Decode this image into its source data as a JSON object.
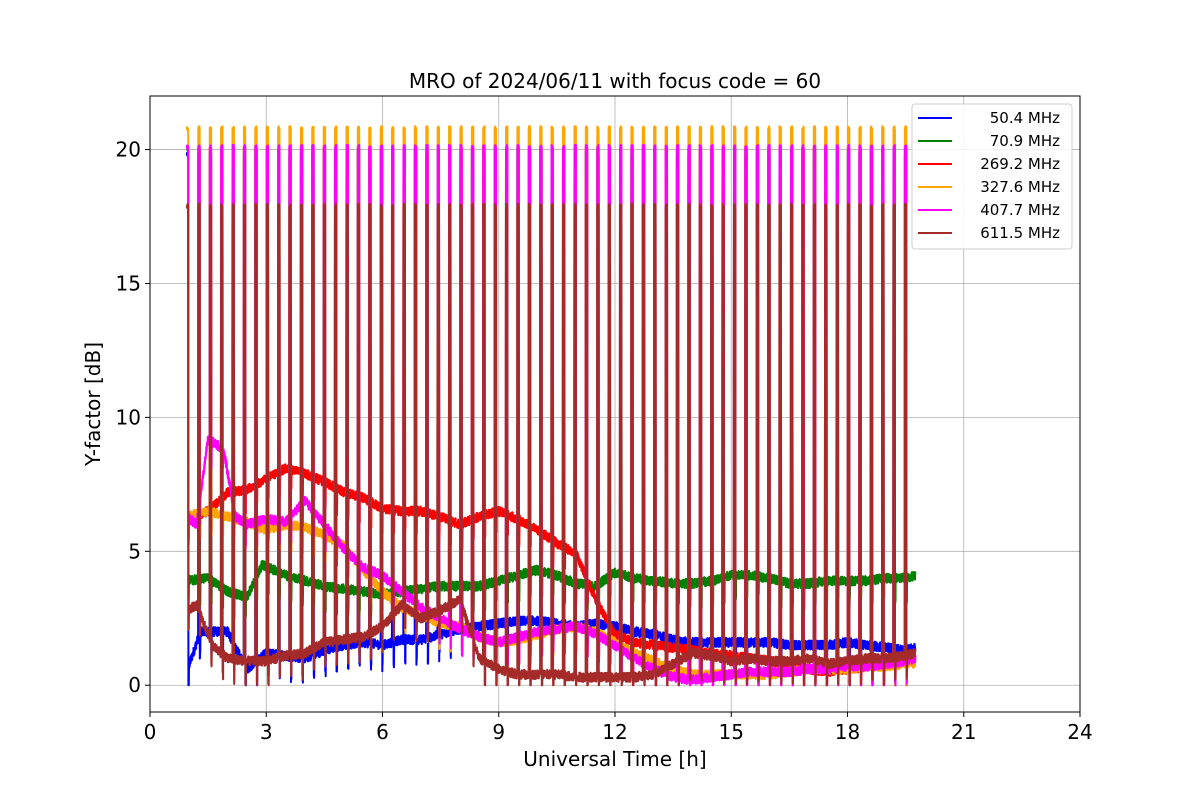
{
  "chart_data": {
    "type": "line",
    "title": "MRO of 2024/06/11 with focus code = 60",
    "xlabel": "Universal Time [h]",
    "ylabel": "Y-factor [dB]",
    "xlim": [
      0,
      24
    ],
    "ylim": [
      -1,
      22
    ],
    "xticks": [
      0,
      3,
      6,
      9,
      12,
      15,
      18,
      21,
      24
    ],
    "yticks": [
      0,
      5,
      10,
      15,
      20
    ],
    "grid": true,
    "legend_position": "top-right",
    "data_range_hours": [
      0.95,
      19.75
    ],
    "calibration_pulses_per_hour": 3.4,
    "series": [
      {
        "name": "50.4 MHz",
        "color": "#0000ff",
        "pulse_peak": 19.8,
        "x": [
          0.95,
          1.3,
          2.0,
          2.5,
          3.0,
          3.5,
          4.0,
          4.5,
          5.0,
          5.5,
          6.0,
          6.5,
          7.0,
          7.5,
          8.0,
          8.5,
          9.0,
          9.5,
          10.0,
          10.5,
          11.0,
          11.5,
          12.0,
          12.5,
          13.0,
          13.5,
          14.0,
          14.5,
          15.0,
          15.5,
          16.0,
          16.5,
          17.0,
          17.5,
          18.0,
          18.5,
          19.0,
          19.5,
          19.75
        ],
        "values": [
          0.5,
          2.0,
          2.0,
          0.6,
          1.2,
          1.1,
          1.0,
          1.3,
          1.5,
          1.6,
          1.5,
          1.7,
          1.7,
          1.9,
          2.1,
          2.2,
          2.3,
          2.4,
          2.4,
          2.3,
          2.2,
          2.3,
          2.2,
          2.0,
          1.9,
          1.7,
          1.6,
          1.6,
          1.6,
          1.6,
          1.6,
          1.5,
          1.5,
          1.5,
          1.6,
          1.5,
          1.4,
          1.3,
          1.4
        ]
      },
      {
        "name": "70.9 MHz",
        "color": "#008000",
        "pulse_peak": 20.0,
        "x": [
          0.95,
          1.5,
          2.0,
          2.5,
          2.9,
          3.5,
          4.0,
          4.5,
          5.0,
          5.5,
          6.0,
          6.5,
          7.0,
          7.5,
          8.0,
          8.5,
          9.0,
          9.5,
          10.0,
          10.5,
          11.0,
          11.5,
          12.0,
          12.5,
          13.0,
          13.5,
          14.0,
          14.5,
          15.0,
          15.5,
          16.0,
          16.5,
          17.0,
          17.5,
          18.0,
          18.5,
          19.0,
          19.5,
          19.75
        ],
        "values": [
          3.9,
          4.0,
          3.5,
          3.3,
          4.5,
          4.1,
          3.9,
          3.7,
          3.6,
          3.5,
          3.4,
          3.5,
          3.6,
          3.7,
          3.7,
          3.7,
          3.9,
          4.1,
          4.3,
          4.1,
          3.8,
          3.7,
          4.2,
          4.0,
          3.9,
          3.8,
          3.8,
          3.9,
          4.1,
          4.1,
          4.0,
          3.8,
          3.8,
          3.9,
          3.9,
          3.9,
          4.0,
          4.0,
          4.1
        ]
      },
      {
        "name": "269.2 MHz",
        "color": "#ff0000",
        "pulse_peak": 20.1,
        "x": [
          0.95,
          1.5,
          2.0,
          2.5,
          3.0,
          3.5,
          4.0,
          4.5,
          5.0,
          5.5,
          6.0,
          6.5,
          7.0,
          7.5,
          8.0,
          8.5,
          9.0,
          9.5,
          10.0,
          10.5,
          11.0,
          11.5,
          12.0,
          12.5,
          13.0,
          13.5,
          14.0,
          14.5,
          15.0,
          15.5,
          16.0,
          16.5,
          17.0,
          17.5,
          18.0,
          18.5,
          19.0,
          19.5,
          19.75
        ],
        "values": [
          6.2,
          6.5,
          7.2,
          7.3,
          7.7,
          8.1,
          7.9,
          7.6,
          7.2,
          7.0,
          6.6,
          6.5,
          6.5,
          6.3,
          6.0,
          6.3,
          6.5,
          6.2,
          5.8,
          5.3,
          4.9,
          3.2,
          1.9,
          1.6,
          1.5,
          1.4,
          1.3,
          1.2,
          1.1,
          1.0,
          0.9,
          0.8,
          0.6,
          0.5,
          0.6,
          0.7,
          0.8,
          0.9,
          1.0
        ]
      },
      {
        "name": "327.6 MHz",
        "color": "#ffa500",
        "pulse_peak": 20.8,
        "x": [
          0.95,
          1.5,
          2.0,
          2.5,
          3.0,
          3.5,
          4.0,
          4.5,
          5.0,
          5.5,
          6.0,
          6.5,
          7.0,
          7.5,
          8.0,
          8.5,
          9.0,
          9.5,
          10.0,
          10.5,
          11.0,
          11.5,
          12.0,
          12.5,
          13.0,
          13.5,
          14.0,
          14.5,
          15.0,
          15.5,
          16.0,
          16.5,
          17.0,
          17.5,
          18.0,
          18.5,
          19.0,
          19.5,
          19.75
        ],
        "values": [
          6.3,
          6.5,
          6.3,
          6.1,
          5.8,
          6.0,
          5.9,
          5.6,
          5.2,
          4.3,
          3.5,
          2.9,
          2.6,
          2.3,
          2.2,
          1.8,
          1.6,
          1.7,
          1.9,
          2.1,
          2.2,
          2.0,
          1.6,
          1.2,
          0.9,
          0.6,
          0.4,
          0.4,
          0.4,
          0.4,
          0.4,
          0.5,
          0.6,
          0.6,
          0.6,
          0.7,
          0.7,
          0.8,
          0.8
        ]
      },
      {
        "name": "407.7 MHz",
        "color": "#ff00ff",
        "pulse_peak": 20.1,
        "x": [
          0.95,
          1.2,
          1.5,
          1.9,
          2.2,
          2.5,
          3.0,
          3.5,
          4.0,
          4.5,
          5.0,
          5.5,
          6.0,
          6.5,
          7.0,
          7.5,
          8.0,
          8.5,
          9.0,
          9.5,
          10.0,
          10.5,
          11.0,
          11.5,
          12.0,
          12.5,
          13.0,
          13.5,
          14.0,
          14.5,
          15.0,
          15.5,
          16.0,
          16.5,
          17.0,
          17.5,
          18.0,
          18.5,
          19.0,
          19.5,
          19.75
        ],
        "values": [
          6.3,
          6.0,
          9.2,
          8.8,
          6.3,
          6.0,
          6.2,
          6.1,
          6.9,
          6.0,
          5.1,
          4.4,
          4.1,
          3.5,
          2.9,
          2.5,
          2.1,
          1.8,
          1.6,
          1.8,
          2.0,
          2.1,
          2.2,
          1.9,
          1.5,
          1.0,
          0.6,
          0.3,
          0.2,
          0.3,
          0.4,
          0.5,
          0.5,
          0.5,
          0.6,
          0.6,
          0.7,
          0.7,
          0.8,
          0.9,
          1.0
        ]
      },
      {
        "name": "611.5 MHz",
        "color": "#a52a2a",
        "pulse_peak": 17.9,
        "x": [
          0.95,
          1.2,
          1.6,
          2.0,
          2.5,
          3.0,
          3.5,
          4.0,
          4.5,
          5.0,
          5.5,
          6.0,
          6.5,
          7.0,
          7.5,
          8.0,
          8.5,
          9.0,
          9.5,
          10.0,
          10.5,
          11.0,
          11.5,
          12.0,
          12.5,
          13.0,
          13.5,
          14.0,
          14.5,
          15.0,
          15.5,
          16.0,
          16.5,
          17.0,
          17.5,
          18.0,
          18.5,
          19.0,
          19.5,
          19.75
        ],
        "values": [
          2.8,
          3.0,
          1.5,
          1.0,
          0.9,
          0.9,
          1.1,
          1.2,
          1.6,
          1.7,
          1.8,
          2.2,
          3.0,
          2.5,
          2.8,
          3.2,
          1.0,
          0.6,
          0.4,
          0.4,
          0.4,
          0.3,
          0.3,
          0.3,
          0.3,
          0.4,
          0.8,
          1.2,
          1.1,
          0.9,
          1.0,
          0.9,
          0.9,
          1.0,
          0.8,
          0.9,
          1.0,
          1.0,
          1.1,
          1.2
        ]
      }
    ]
  }
}
